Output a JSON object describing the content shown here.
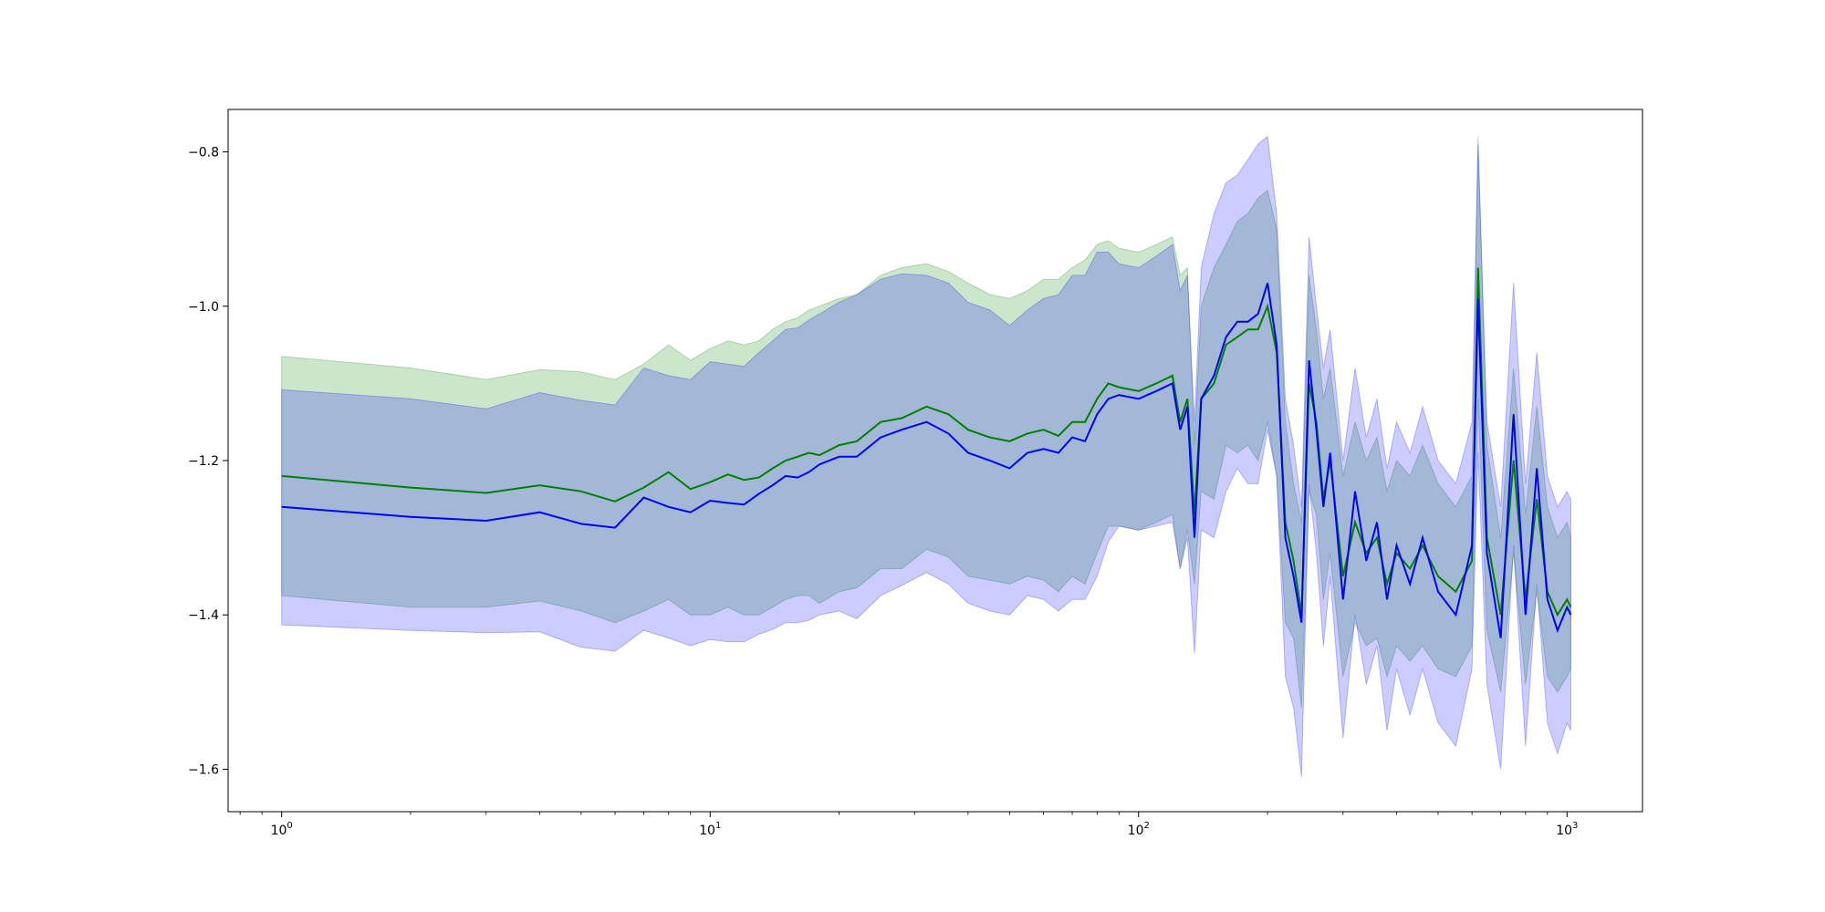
{
  "chart_data": {
    "type": "line",
    "x_scale": "log",
    "xlim": [
      0.75,
      1500
    ],
    "ylim": [
      -1.655,
      -0.745
    ],
    "x_ticks": [
      {
        "value": 1,
        "base": "10",
        "exp": "0"
      },
      {
        "value": 10,
        "base": "10",
        "exp": "1"
      },
      {
        "value": 100,
        "base": "10",
        "exp": "2"
      },
      {
        "value": 1000,
        "base": "10",
        "exp": "3"
      }
    ],
    "y_ticks": [
      {
        "value": -0.8,
        "label": "−0.8"
      },
      {
        "value": -1.0,
        "label": "−1.0"
      },
      {
        "value": -1.2,
        "label": "−1.2"
      },
      {
        "value": -1.4,
        "label": "−1.4"
      },
      {
        "value": -1.6,
        "label": "−1.6"
      }
    ],
    "grid": false,
    "colors": {
      "green_line": "#008000",
      "green_band": "#008000",
      "blue_line": "#0000ff",
      "blue_band": "#0000ff"
    },
    "series": [
      {
        "color_key": "green",
        "x": [
          1,
          2,
          3,
          4,
          5,
          6,
          7,
          8,
          9,
          10,
          11,
          12,
          13,
          14,
          15,
          16,
          17,
          18,
          20,
          22,
          25,
          28,
          32,
          36,
          40,
          45,
          50,
          55,
          60,
          65,
          70,
          75,
          80,
          85,
          90,
          100,
          110,
          120,
          125,
          130,
          135,
          140,
          150,
          160,
          170,
          180,
          190,
          200,
          210,
          220,
          230,
          240,
          250,
          260,
          270,
          280,
          300,
          320,
          340,
          360,
          380,
          400,
          430,
          460,
          500,
          550,
          600,
          620,
          650,
          700,
          750,
          800,
          850,
          900,
          950,
          1000,
          1020
        ],
        "mean": [
          -1.22,
          -1.235,
          -1.242,
          -1.232,
          -1.24,
          -1.253,
          -1.235,
          -1.215,
          -1.237,
          -1.228,
          -1.218,
          -1.225,
          -1.222,
          -1.21,
          -1.2,
          -1.195,
          -1.19,
          -1.193,
          -1.18,
          -1.175,
          -1.15,
          -1.145,
          -1.13,
          -1.14,
          -1.16,
          -1.17,
          -1.175,
          -1.165,
          -1.16,
          -1.168,
          -1.15,
          -1.15,
          -1.12,
          -1.1,
          -1.105,
          -1.11,
          -1.1,
          -1.09,
          -1.15,
          -1.12,
          -1.27,
          -1.12,
          -1.1,
          -1.05,
          -1.04,
          -1.03,
          -1.03,
          -1.0,
          -1.06,
          -1.28,
          -1.33,
          -1.4,
          -1.1,
          -1.15,
          -1.25,
          -1.2,
          -1.35,
          -1.28,
          -1.32,
          -1.3,
          -1.36,
          -1.32,
          -1.34,
          -1.31,
          -1.35,
          -1.37,
          -1.33,
          -0.95,
          -1.3,
          -1.4,
          -1.2,
          -1.38,
          -1.25,
          -1.37,
          -1.4,
          -1.38,
          -1.39
        ],
        "upper": [
          -1.065,
          -1.08,
          -1.095,
          -1.082,
          -1.085,
          -1.095,
          -1.075,
          -1.05,
          -1.07,
          -1.055,
          -1.045,
          -1.05,
          -1.045,
          -1.03,
          -1.02,
          -1.015,
          -1.005,
          -1.0,
          -0.99,
          -0.985,
          -0.96,
          -0.95,
          -0.945,
          -0.955,
          -0.97,
          -0.985,
          -0.99,
          -0.98,
          -0.965,
          -0.965,
          -0.95,
          -0.94,
          -0.92,
          -0.915,
          -0.925,
          -0.93,
          -0.92,
          -0.91,
          -0.96,
          -0.95,
          -1.18,
          -1.0,
          -0.95,
          -0.92,
          -0.89,
          -0.88,
          -0.86,
          -0.85,
          -0.9,
          -1.15,
          -1.23,
          -1.28,
          -0.96,
          -1.03,
          -1.12,
          -1.08,
          -1.22,
          -1.15,
          -1.2,
          -1.17,
          -1.24,
          -1.2,
          -1.22,
          -1.18,
          -1.23,
          -1.26,
          -1.22,
          -0.78,
          -1.18,
          -1.3,
          -1.08,
          -1.27,
          -1.13,
          -1.26,
          -1.3,
          -1.28,
          -1.3
        ],
        "lower": [
          -1.375,
          -1.39,
          -1.39,
          -1.382,
          -1.395,
          -1.41,
          -1.395,
          -1.38,
          -1.4,
          -1.4,
          -1.39,
          -1.4,
          -1.4,
          -1.39,
          -1.38,
          -1.375,
          -1.375,
          -1.385,
          -1.37,
          -1.365,
          -1.34,
          -1.34,
          -1.315,
          -1.325,
          -1.35,
          -1.355,
          -1.36,
          -1.35,
          -1.355,
          -1.37,
          -1.35,
          -1.36,
          -1.32,
          -1.285,
          -1.285,
          -1.29,
          -1.28,
          -1.27,
          -1.34,
          -1.29,
          -1.36,
          -1.24,
          -1.25,
          -1.18,
          -1.19,
          -1.18,
          -1.2,
          -1.15,
          -1.22,
          -1.41,
          -1.43,
          -1.52,
          -1.24,
          -1.27,
          -1.38,
          -1.32,
          -1.48,
          -1.41,
          -1.44,
          -1.43,
          -1.48,
          -1.44,
          -1.46,
          -1.44,
          -1.47,
          -1.48,
          -1.44,
          -1.12,
          -1.42,
          -1.5,
          -1.32,
          -1.49,
          -1.37,
          -1.48,
          -1.5,
          -1.48,
          -1.47
        ]
      },
      {
        "color_key": "blue",
        "x": [
          1,
          2,
          3,
          4,
          5,
          6,
          7,
          8,
          9,
          10,
          11,
          12,
          13,
          14,
          15,
          16,
          17,
          18,
          20,
          22,
          25,
          28,
          32,
          36,
          40,
          45,
          50,
          55,
          60,
          65,
          70,
          75,
          80,
          85,
          90,
          100,
          110,
          120,
          125,
          130,
          135,
          140,
          150,
          160,
          170,
          180,
          190,
          200,
          210,
          220,
          230,
          240,
          250,
          260,
          270,
          280,
          300,
          320,
          340,
          360,
          380,
          400,
          430,
          460,
          500,
          550,
          600,
          620,
          650,
          700,
          750,
          800,
          850,
          900,
          950,
          1000,
          1020
        ],
        "mean": [
          -1.26,
          -1.273,
          -1.278,
          -1.267,
          -1.282,
          -1.287,
          -1.248,
          -1.26,
          -1.267,
          -1.252,
          -1.255,
          -1.257,
          -1.243,
          -1.232,
          -1.22,
          -1.222,
          -1.215,
          -1.205,
          -1.195,
          -1.195,
          -1.17,
          -1.16,
          -1.15,
          -1.165,
          -1.19,
          -1.2,
          -1.21,
          -1.19,
          -1.185,
          -1.19,
          -1.17,
          -1.175,
          -1.14,
          -1.12,
          -1.115,
          -1.12,
          -1.11,
          -1.1,
          -1.16,
          -1.13,
          -1.3,
          -1.12,
          -1.09,
          -1.04,
          -1.02,
          -1.02,
          -1.01,
          -0.97,
          -1.05,
          -1.3,
          -1.35,
          -1.41,
          -1.07,
          -1.16,
          -1.26,
          -1.19,
          -1.38,
          -1.24,
          -1.33,
          -1.28,
          -1.38,
          -1.31,
          -1.36,
          -1.3,
          -1.37,
          -1.4,
          -1.31,
          -0.99,
          -1.32,
          -1.43,
          -1.14,
          -1.4,
          -1.21,
          -1.38,
          -1.42,
          -1.39,
          -1.4
        ],
        "upper": [
          -1.108,
          -1.12,
          -1.133,
          -1.112,
          -1.122,
          -1.128,
          -1.08,
          -1.09,
          -1.095,
          -1.072,
          -1.075,
          -1.078,
          -1.06,
          -1.045,
          -1.03,
          -1.028,
          -1.018,
          -1.01,
          -0.995,
          -0.985,
          -0.965,
          -0.958,
          -0.96,
          -0.97,
          -0.995,
          -1.005,
          -1.025,
          -1.005,
          -0.99,
          -0.985,
          -0.96,
          -0.96,
          -0.93,
          -0.93,
          -0.945,
          -0.95,
          -0.935,
          -0.92,
          -0.98,
          -0.96,
          -1.15,
          -0.95,
          -0.88,
          -0.84,
          -0.83,
          -0.81,
          -0.79,
          -0.78,
          -0.88,
          -1.12,
          -1.18,
          -1.26,
          -0.91,
          -1.0,
          -1.08,
          -1.03,
          -1.2,
          -1.08,
          -1.17,
          -1.12,
          -1.21,
          -1.15,
          -1.19,
          -1.13,
          -1.2,
          -1.23,
          -1.15,
          -0.79,
          -1.15,
          -1.26,
          -0.97,
          -1.23,
          -1.06,
          -1.22,
          -1.26,
          -1.24,
          -1.25
        ],
        "lower": [
          -1.413,
          -1.42,
          -1.423,
          -1.422,
          -1.442,
          -1.447,
          -1.42,
          -1.43,
          -1.44,
          -1.432,
          -1.435,
          -1.435,
          -1.425,
          -1.419,
          -1.41,
          -1.41,
          -1.407,
          -1.4,
          -1.395,
          -1.405,
          -1.375,
          -1.362,
          -1.345,
          -1.36,
          -1.385,
          -1.395,
          -1.4,
          -1.375,
          -1.38,
          -1.395,
          -1.38,
          -1.38,
          -1.35,
          -1.305,
          -1.285,
          -1.29,
          -1.285,
          -1.28,
          -1.34,
          -1.3,
          -1.45,
          -1.29,
          -1.3,
          -1.24,
          -1.21,
          -1.23,
          -1.23,
          -1.16,
          -1.22,
          -1.48,
          -1.52,
          -1.61,
          -1.23,
          -1.32,
          -1.44,
          -1.35,
          -1.56,
          -1.4,
          -1.49,
          -1.44,
          -1.55,
          -1.47,
          -1.53,
          -1.47,
          -1.54,
          -1.57,
          -1.47,
          -1.19,
          -1.49,
          -1.6,
          -1.31,
          -1.57,
          -1.36,
          -1.54,
          -1.58,
          -1.54,
          -1.55
        ]
      }
    ]
  }
}
